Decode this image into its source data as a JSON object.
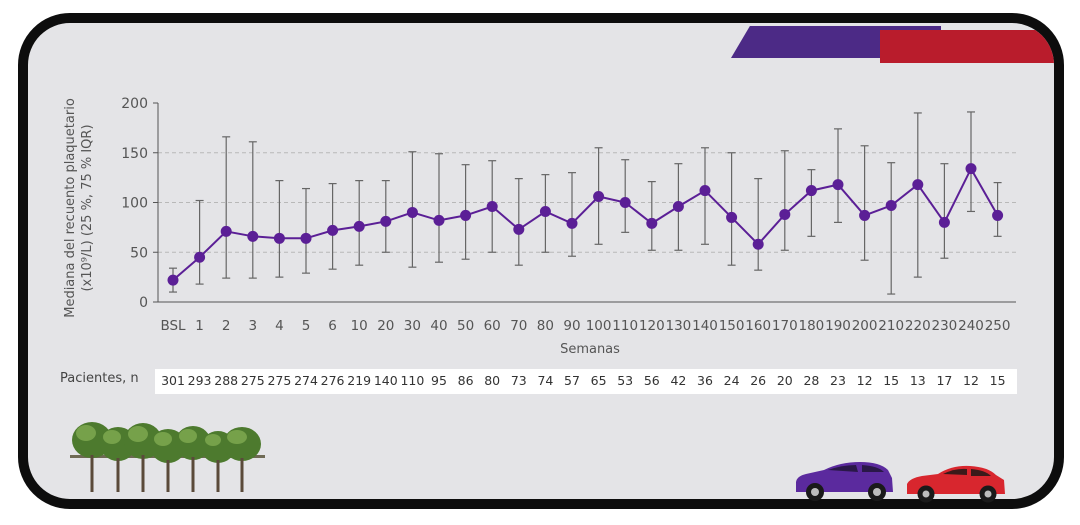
{
  "chart_data": {
    "type": "line",
    "title": "",
    "xlabel": "Semanas",
    "ylabel_lines": [
      "Mediana del recuento plaquetario",
      "(x10⁹/L) (25 %, 75 % IQR)"
    ],
    "ylim": [
      0,
      200
    ],
    "yticks": [
      0,
      50,
      100,
      150,
      200
    ],
    "grid": "horizontal-dashed",
    "series_color": "#5b1f96",
    "categories": [
      "BSL",
      "1",
      "2",
      "3",
      "4",
      "5",
      "6",
      "10",
      "20",
      "30",
      "40",
      "50",
      "60",
      "70",
      "80",
      "90",
      "100",
      "110",
      "120",
      "130",
      "140",
      "150",
      "160",
      "170",
      "180",
      "190",
      "200",
      "210",
      "220",
      "230",
      "240",
      "250"
    ],
    "series": [
      {
        "values": [
          22,
          45,
          71,
          66,
          64,
          64,
          72,
          76,
          81,
          90,
          82,
          87,
          96,
          73,
          91,
          79,
          106,
          100,
          79,
          96,
          112,
          85,
          58,
          88,
          112,
          118,
          87,
          97,
          118,
          80,
          134,
          87
        ],
        "q25": [
          10,
          18,
          24,
          24,
          25,
          29,
          33,
          37,
          50,
          35,
          40,
          43,
          50,
          37,
          50,
          46,
          58,
          70,
          52,
          52,
          58,
          37,
          32,
          52,
          66,
          80,
          42,
          8,
          25,
          44,
          91,
          66
        ],
        "q75": [
          34,
          102,
          166,
          161,
          122,
          114,
          119,
          122,
          122,
          151,
          149,
          138,
          142,
          124,
          128,
          130,
          155,
          143,
          121,
          139,
          155,
          150,
          124,
          152,
          133,
          174,
          157,
          140,
          190,
          139,
          191,
          120
        ]
      }
    ]
  },
  "patients": {
    "label": "Pacientes, n",
    "values": [
      "301",
      "293",
      "288",
      "275",
      "275",
      "274",
      "276",
      "219",
      "140",
      "110",
      "95",
      "86",
      "80",
      "73",
      "74",
      "57",
      "65",
      "53",
      "56",
      "42",
      "36",
      "24",
      "26",
      "20",
      "28",
      "23",
      "12",
      "15",
      "13",
      "17",
      "12",
      "15"
    ]
  },
  "colors": {
    "background": "#e4e4e7",
    "frame": "#0d0d0d",
    "brand_purple": "#4c2a86",
    "brand_red": "#b91c2c"
  }
}
